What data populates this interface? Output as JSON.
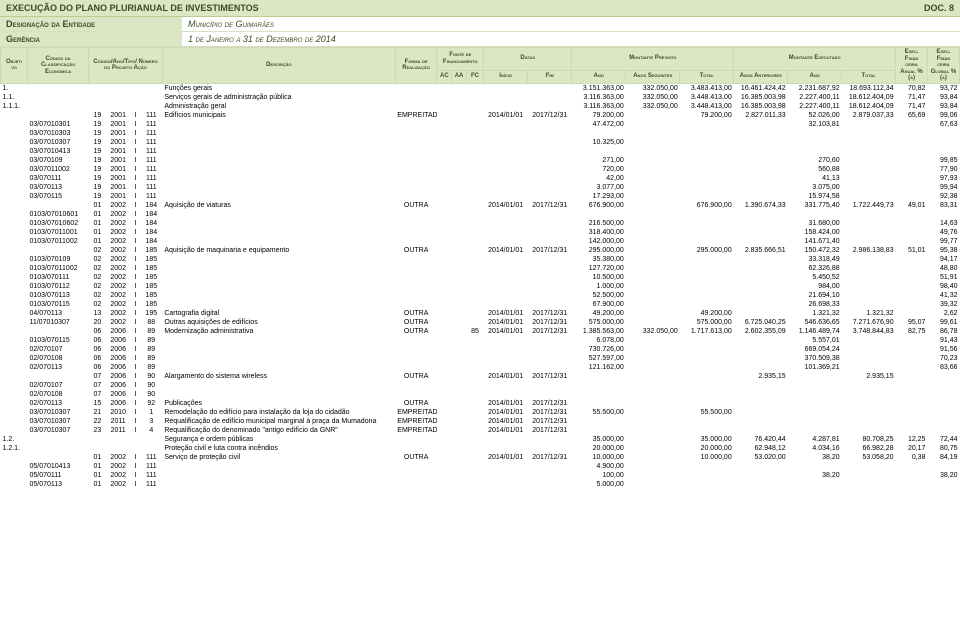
{
  "top": {
    "title_left": "Execução do Plano Plurianual de Investimentos",
    "title_right": "Doc. 8",
    "ent_label": "Designação da Entidade",
    "ent_value": "Município de Guimarães",
    "ger_label": "Gerência",
    "ger_value": "1 de Janeiro a 31 de Dezembro de 2014"
  },
  "headers": {
    "obj": "Objeti vo",
    "class": "Código da Classificação Económica",
    "code": "Código/Ano/Tipo/ Número do Projeto Ação",
    "desc": "Descrição",
    "forma": "Forma de Realização",
    "fonte": "Fonte de Financiamento",
    "ac": "AC",
    "aa": "AA",
    "fc": "FC",
    "datas": "Datas",
    "ini": "Início",
    "fim": "Fim",
    "prev": "Montante Previsto",
    "ano": "Ano",
    "seg": "Anos Seguintes",
    "tot": "Total",
    "exec": "Montante Executado",
    "ant": "Anos Anteriores",
    "ex1a": "Exec. Finan ceira Anual % (a)",
    "ex2a": "Exec. Finan ceira Global % (a)"
  },
  "rows": [
    {
      "obj": "1.",
      "desc": "Funções gerais",
      "a1": "3.151.363,00",
      "a2": "332.050,00",
      "a3": "3.483.413,00",
      "a4": "16.461.424,42",
      "a5": "2.231.687,92",
      "a6": "18.693.112,34",
      "p1": "70,82",
      "p2": "93,72"
    },
    {
      "obj": "1.1.",
      "desc": "Serviços gerais de administração pública",
      "a1": "3.116.363,00",
      "a2": "332.050,00",
      "a3": "3.448.413,00",
      "a4": "16.385.003,98",
      "a5": "2.227.400,11",
      "a6": "18.612.404,09",
      "p1": "71,47",
      "p2": "93,84"
    },
    {
      "obj": "1.1.1.",
      "desc": "Administração geral",
      "a1": "3.116.363,00",
      "a2": "332.050,00",
      "a3": "3.448.413,00",
      "a4": "16.385.003,98",
      "a5": "2.227.400,11",
      "a6": "18.612.404,09",
      "p1": "71,47",
      "p2": "93,84"
    },
    {
      "n": "19",
      "y": "2001",
      "t": "I",
      "pr": "111",
      "desc": "Edifícios municipais",
      "forma": "EMPREITADA",
      "ini": "2014/01/01",
      "fim": "2017/12/31",
      "a1": "79.200,00",
      "a3": "79.200,00",
      "a4": "2.827.011,33",
      "a5": "52.026,00",
      "a6": "2.879.037,33",
      "p1": "65,69",
      "p2": "99,06"
    },
    {
      "cls": "03/07010301",
      "n": "19",
      "y": "2001",
      "t": "I",
      "pr": "111",
      "a1": "47.472,00",
      "a5": "32.103,81",
      "p2": "67,63"
    },
    {
      "cls": "03/07010303",
      "n": "19",
      "y": "2001",
      "t": "I",
      "pr": "111"
    },
    {
      "cls": "03/07010307",
      "n": "19",
      "y": "2001",
      "t": "I",
      "pr": "111",
      "a1": "10.325,00"
    },
    {
      "cls": "03/07010413",
      "n": "19",
      "y": "2001",
      "t": "I",
      "pr": "111"
    },
    {
      "cls": "03/070109",
      "n": "19",
      "y": "2001",
      "t": "I",
      "pr": "111",
      "a1": "271,00",
      "a5": "270,60",
      "p2": "99,85"
    },
    {
      "cls": "03/07011002",
      "n": "19",
      "y": "2001",
      "t": "I",
      "pr": "111",
      "a1": "720,00",
      "a5": "560,88",
      "p2": "77,90"
    },
    {
      "cls": "03/070111",
      "n": "19",
      "y": "2001",
      "t": "I",
      "pr": "111",
      "a1": "42,00",
      "a5": "41,13",
      "p2": "97,93"
    },
    {
      "cls": "03/070113",
      "n": "19",
      "y": "2001",
      "t": "I",
      "pr": "111",
      "a1": "3.077,00",
      "a5": "3.075,00",
      "p2": "99,94"
    },
    {
      "cls": "03/070115",
      "n": "19",
      "y": "2001",
      "t": "I",
      "pr": "111",
      "a1": "17.293,00",
      "a5": "15.974,58",
      "p2": "92,38"
    },
    {
      "n": "01",
      "y": "2002",
      "t": "I",
      "pr": "184",
      "desc": "Aquisição de viaturas",
      "forma": "OUTRA",
      "ini": "2014/01/01",
      "fim": "2017/12/31",
      "a1": "676.900,00",
      "a3": "676.900,00",
      "a4": "1.390.674,33",
      "a5": "331.775,40",
      "a6": "1.722.449,73",
      "p1": "49,01",
      "p2": "83,31"
    },
    {
      "cls": "0103/07010601",
      "n": "01",
      "y": "2002",
      "t": "I",
      "pr": "184"
    },
    {
      "cls": "0103/07010602",
      "n": "01",
      "y": "2002",
      "t": "I",
      "pr": "184",
      "a1": "216.500,00",
      "a5": "31.680,00",
      "p2": "14,63"
    },
    {
      "cls": "0103/07011001",
      "n": "01",
      "y": "2002",
      "t": "I",
      "pr": "184",
      "a1": "318.400,00",
      "a5": "158.424,00",
      "p2": "49,76"
    },
    {
      "cls": "0103/07011002",
      "n": "01",
      "y": "2002",
      "t": "I",
      "pr": "184",
      "a1": "142.000,00",
      "a5": "141.671,40",
      "p2": "99,77"
    },
    {
      "n": "02",
      "y": "2002",
      "t": "I",
      "pr": "185",
      "desc": "Aquisição de maquinaria e equipamento",
      "forma": "OUTRA",
      "ini": "2014/01/01",
      "fim": "2017/12/31",
      "a1": "295.000,00",
      "a3": "295.000,00",
      "a4": "2.835.666,51",
      "a5": "150.472,32",
      "a6": "2.986.138,83",
      "p1": "51,01",
      "p2": "95,38"
    },
    {
      "cls": "0103/070109",
      "n": "02",
      "y": "2002",
      "t": "I",
      "pr": "185",
      "a1": "35.380,00",
      "a5": "33.318,49",
      "p2": "94,17"
    },
    {
      "cls": "0103/07011002",
      "n": "02",
      "y": "2002",
      "t": "I",
      "pr": "185",
      "a1": "127.720,00",
      "a5": "62.326,88",
      "p2": "48,80"
    },
    {
      "cls": "0103/070111",
      "n": "02",
      "y": "2002",
      "t": "I",
      "pr": "185",
      "a1": "10.500,00",
      "a5": "5.450,52",
      "p2": "51,91"
    },
    {
      "cls": "0103/070112",
      "n": "02",
      "y": "2002",
      "t": "I",
      "pr": "185",
      "a1": "1.000,00",
      "a5": "984,00",
      "p2": "98,40"
    },
    {
      "cls": "0103/070113",
      "n": "02",
      "y": "2002",
      "t": "I",
      "pr": "185",
      "a1": "52.500,00",
      "a5": "21.694,10",
      "p2": "41,32"
    },
    {
      "cls": "0103/070115",
      "n": "02",
      "y": "2002",
      "t": "I",
      "pr": "185",
      "a1": "67.900,00",
      "a5": "26.698,33",
      "p2": "39,32"
    },
    {
      "cls": "04/070113",
      "n": "13",
      "y": "2002",
      "t": "I",
      "pr": "195",
      "desc": "Cartografia digital",
      "forma": "OUTRA",
      "ini": "2014/01/01",
      "fim": "2017/12/31",
      "a1": "49.200,00",
      "a3": "49.200,00",
      "a5": "1.321,32",
      "a6": "1.321,32",
      "p2": "2,62"
    },
    {
      "cls": "11/07010307",
      "n": "20",
      "y": "2002",
      "t": "I",
      "pr": "88",
      "desc": "Outras aquisições de edifícios",
      "forma": "OUTRA",
      "ini": "2014/01/01",
      "fim": "2017/12/31",
      "a1": "575.000,00",
      "a3": "575.000,00",
      "a4": "6.725.040,25",
      "a5": "546.636,65",
      "a6": "7.271.676,90",
      "p1": "95,07",
      "p2": "99,61"
    },
    {
      "n": "06",
      "y": "2006",
      "t": "I",
      "pr": "89",
      "desc": "Modernização administrativa",
      "forma": "OUTRA",
      "fc": "85",
      "ini": "2014/01/01",
      "fim": "2017/12/31",
      "a1": "1.385.563,00",
      "a2": "332.050,00",
      "a3": "1.717.613,00",
      "a4": "2.602.355,09",
      "a5": "1.146.489,74",
      "a6": "3.748.844,83",
      "p1": "82,75",
      "p2": "86,78"
    },
    {
      "cls": "0103/070115",
      "n": "06",
      "y": "2006",
      "t": "I",
      "pr": "89",
      "a1": "6.078,00",
      "a5": "5.557,01",
      "p2": "91,43"
    },
    {
      "cls": "02/070107",
      "n": "06",
      "y": "2006",
      "t": "I",
      "pr": "89",
      "a1": "730.726,00",
      "a5": "669.054,24",
      "p2": "91,56"
    },
    {
      "cls": "02/070108",
      "n": "06",
      "y": "2006",
      "t": "I",
      "pr": "89",
      "a1": "527.597,00",
      "a5": "370.509,38",
      "p2": "70,23"
    },
    {
      "cls": "02/070113",
      "n": "06",
      "y": "2006",
      "t": "I",
      "pr": "89",
      "a1": "121.162,00",
      "a5": "101.369,21",
      "p2": "83,66"
    },
    {
      "n": "07",
      "y": "2006",
      "t": "I",
      "pr": "90",
      "desc": "Alargamento do sistema wireless",
      "forma": "OUTRA",
      "ini": "2014/01/01",
      "fim": "2017/12/31",
      "a4": "2.935,15",
      "a6": "2.935,15"
    },
    {
      "cls": "02/070107",
      "n": "07",
      "y": "2006",
      "t": "I",
      "pr": "90"
    },
    {
      "cls": "02/070108",
      "n": "07",
      "y": "2006",
      "t": "I",
      "pr": "90"
    },
    {
      "cls": "02/070113",
      "n": "15",
      "y": "2006",
      "t": "I",
      "pr": "92",
      "desc": "Publicações",
      "forma": "OUTRA",
      "ini": "2014/01/01",
      "fim": "2017/12/31"
    },
    {
      "cls": "03/07010307",
      "n": "21",
      "y": "2010",
      "t": "I",
      "pr": "1",
      "desc": "Remodelação do edifício para instalação da loja do cidadão",
      "forma": "EMPREITADA",
      "ini": "2014/01/01",
      "fim": "2017/12/31",
      "a1": "55.500,00",
      "a3": "55.500,00"
    },
    {
      "cls": "03/07010307",
      "n": "22",
      "y": "2011",
      "t": "I",
      "pr": "3",
      "desc": "Requalificação de edifício municipal marginal à praça da Mumadona",
      "forma": "EMPREITADA",
      "ini": "2014/01/01",
      "fim": "2017/12/31"
    },
    {
      "cls": "03/07010307",
      "n": "23",
      "y": "2011",
      "t": "I",
      "pr": "4",
      "desc": "Requalificação do denominado \"antigo edifício da GNR\"",
      "forma": "EMPREITADA",
      "ini": "2014/01/01",
      "fim": "2017/12/31"
    },
    {
      "obj": "1.2.",
      "desc": "Segurança e ordem públicas",
      "a1": "35.000,00",
      "a3": "35.000,00",
      "a4": "76.420,44",
      "a5": "4.287,81",
      "a6": "80.708,25",
      "p1": "12,25",
      "p2": "72,44"
    },
    {
      "obj": "1.2.1.",
      "desc": "Proteção civil e luta contra incêndios",
      "a1": "20.000,00",
      "a3": "20.000,00",
      "a4": "62.948,12",
      "a5": "4.034,16",
      "a6": "66.982,28",
      "p1": "20,17",
      "p2": "80,75"
    },
    {
      "n": "01",
      "y": "2002",
      "t": "I",
      "pr": "111",
      "desc": "Serviço de proteção civil",
      "forma": "OUTRA",
      "ini": "2014/01/01",
      "fim": "2017/12/31",
      "a1": "10.000,00",
      "a3": "10.000,00",
      "a4": "53.020,00",
      "a5": "38,20",
      "a6": "53.058,20",
      "p1": "0,38",
      "p2": "84,19"
    },
    {
      "cls": "05/07010413",
      "n": "01",
      "y": "2002",
      "t": "I",
      "pr": "111",
      "a1": "4.900,00"
    },
    {
      "cls": "05/070111",
      "n": "01",
      "y": "2002",
      "t": "I",
      "pr": "111",
      "a1": "100,00",
      "a5": "38,20",
      "p2": "38,20"
    },
    {
      "cls": "05/070113",
      "n": "01",
      "y": "2002",
      "t": "I",
      "pr": "111",
      "a1": "5.000,00"
    }
  ]
}
